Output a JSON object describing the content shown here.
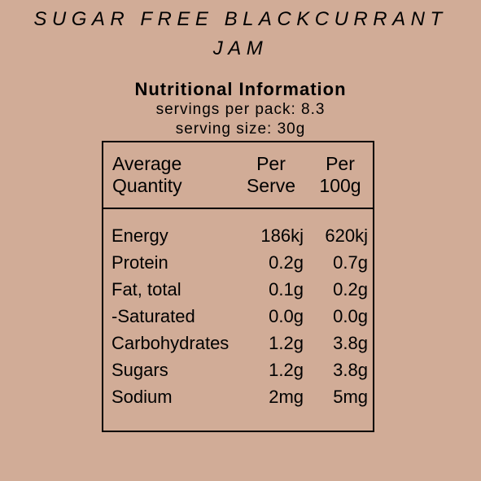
{
  "product": {
    "title_line1": "SUGAR FREE BLACKCURRANT",
    "title_line2": "JAM"
  },
  "panel": {
    "heading": "Nutritional Information",
    "servings_per_pack": "servings per pack: 8.3",
    "serving_size": "serving size: 30g",
    "columns": {
      "name": [
        "Average",
        "Quantity"
      ],
      "per_serve": [
        "Per",
        "Serve"
      ],
      "per_100g": [
        "Per",
        "100g"
      ]
    },
    "rows": [
      {
        "name": "Energy",
        "per_serve": "186kj",
        "per_100g": "620kj"
      },
      {
        "name": "Protein",
        "per_serve": "0.2g",
        "per_100g": "0.7g"
      },
      {
        "name": "Fat, total",
        "per_serve": "0.1g",
        "per_100g": "0.2g"
      },
      {
        "name": "-Saturated",
        "per_serve": "0.0g",
        "per_100g": "0.0g"
      },
      {
        "name": "Carbohydrates",
        "per_serve": "1.2g",
        "per_100g": "3.8g"
      },
      {
        "name": "Sugars",
        "per_serve": "1.2g",
        "per_100g": "3.8g"
      },
      {
        "name": "Sodium",
        "per_serve": "2mg",
        "per_100g": "5mg"
      }
    ]
  },
  "colors": {
    "background": "#d1ac97",
    "text": "#000000"
  }
}
